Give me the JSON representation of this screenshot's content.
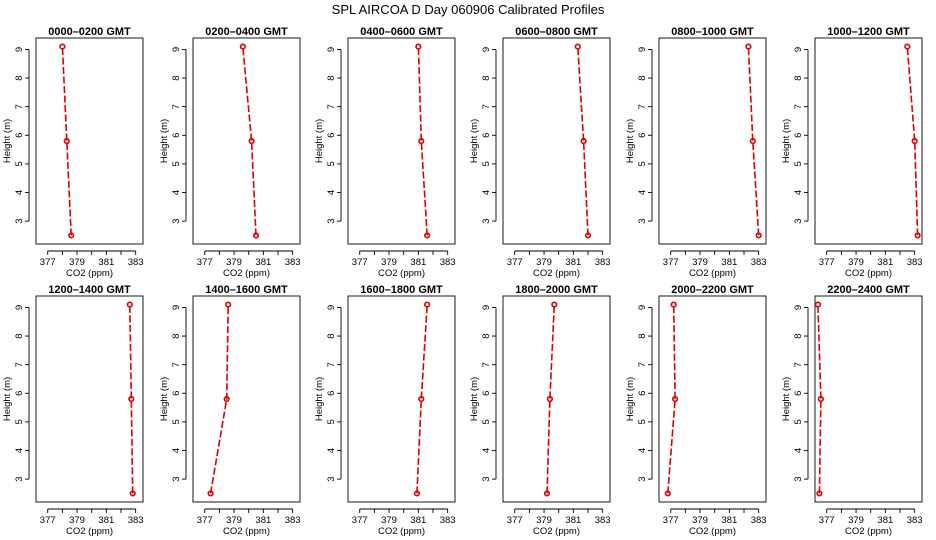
{
  "figure": {
    "title": "SPL AIRCOA D  Day 060906  Calibrated Profiles",
    "line_color": "#dd0000",
    "marker": "open-circle"
  },
  "chart_data": [
    {
      "type": "line",
      "title": "0000–0200 GMT",
      "xlabel": "CO2 (ppm)",
      "ylabel": "Height (m)",
      "xlim": [
        376.2,
        383.5
      ],
      "ylim": [
        2.2,
        9.4
      ],
      "xticks": [
        377,
        379,
        381,
        383
      ],
      "yticks": [
        3,
        4,
        5,
        6,
        7,
        8,
        9
      ],
      "series": [
        {
          "x": [
            378.6,
            378.3,
            378.0
          ],
          "y": [
            2.5,
            5.8,
            9.1
          ]
        }
      ]
    },
    {
      "type": "line",
      "title": "0200–0400 GMT",
      "xlabel": "CO2 (ppm)",
      "ylabel": "Height (m)",
      "xlim": [
        376.2,
        383.5
      ],
      "ylim": [
        2.2,
        9.4
      ],
      "xticks": [
        377,
        379,
        381,
        383
      ],
      "yticks": [
        3,
        4,
        5,
        6,
        7,
        8,
        9
      ],
      "series": [
        {
          "x": [
            380.5,
            380.2,
            379.6
          ],
          "y": [
            2.5,
            5.8,
            9.1
          ]
        }
      ]
    },
    {
      "type": "line",
      "title": "0400–0600 GMT",
      "xlabel": "CO2 (ppm)",
      "ylabel": "Height (m)",
      "xlim": [
        376.2,
        383.5
      ],
      "ylim": [
        2.2,
        9.4
      ],
      "xticks": [
        377,
        379,
        381,
        383
      ],
      "yticks": [
        3,
        4,
        5,
        6,
        7,
        8,
        9
      ],
      "series": [
        {
          "x": [
            381.6,
            381.2,
            381.0
          ],
          "y": [
            2.5,
            5.8,
            9.1
          ]
        }
      ]
    },
    {
      "type": "line",
      "title": "0600–0800 GMT",
      "xlabel": "CO2 (ppm)",
      "ylabel": "Height (m)",
      "xlim": [
        376.2,
        383.5
      ],
      "ylim": [
        2.2,
        9.4
      ],
      "xticks": [
        377,
        379,
        381,
        383
      ],
      "yticks": [
        3,
        4,
        5,
        6,
        7,
        8,
        9
      ],
      "series": [
        {
          "x": [
            382.0,
            381.7,
            381.3
          ],
          "y": [
            2.5,
            5.8,
            9.1
          ]
        }
      ]
    },
    {
      "type": "line",
      "title": "0800–1000 GMT",
      "xlabel": "CO2 (ppm)",
      "ylabel": "Height (m)",
      "xlim": [
        376.2,
        383.5
      ],
      "ylim": [
        2.2,
        9.4
      ],
      "xticks": [
        377,
        379,
        381,
        383
      ],
      "yticks": [
        3,
        4,
        5,
        6,
        7,
        8,
        9
      ],
      "series": [
        {
          "x": [
            383.0,
            382.6,
            382.3
          ],
          "y": [
            2.5,
            5.8,
            9.1
          ]
        }
      ]
    },
    {
      "type": "line",
      "title": "1000–1200 GMT",
      "xlabel": "CO2 (ppm)",
      "ylabel": "Height (m)",
      "xlim": [
        376.2,
        383.5
      ],
      "ylim": [
        2.2,
        9.4
      ],
      "xticks": [
        377,
        379,
        381,
        383
      ],
      "yticks": [
        3,
        4,
        5,
        6,
        7,
        8,
        9
      ],
      "series": [
        {
          "x": [
            383.2,
            383.0,
            382.5
          ],
          "y": [
            2.5,
            5.8,
            9.1
          ]
        }
      ]
    },
    {
      "type": "line",
      "title": "1200–1400 GMT",
      "xlabel": "CO2 (ppm)",
      "ylabel": "Height (m)",
      "xlim": [
        376.2,
        383.5
      ],
      "ylim": [
        2.2,
        9.4
      ],
      "xticks": [
        377,
        379,
        381,
        383
      ],
      "yticks": [
        3,
        4,
        5,
        6,
        7,
        8,
        9
      ],
      "series": [
        {
          "x": [
            382.8,
            382.7,
            382.6
          ],
          "y": [
            2.5,
            5.8,
            9.1
          ]
        }
      ]
    },
    {
      "type": "line",
      "title": "1400–1600 GMT",
      "xlabel": "CO2 (ppm)",
      "ylabel": "Height (m)",
      "xlim": [
        376.2,
        383.5
      ],
      "ylim": [
        2.2,
        9.4
      ],
      "xticks": [
        377,
        379,
        381,
        383
      ],
      "yticks": [
        3,
        4,
        5,
        6,
        7,
        8,
        9
      ],
      "series": [
        {
          "x": [
            377.4,
            378.5,
            378.6
          ],
          "y": [
            2.5,
            5.8,
            9.1
          ]
        }
      ]
    },
    {
      "type": "line",
      "title": "1600–1800 GMT",
      "xlabel": "CO2 (ppm)",
      "ylabel": "Height (m)",
      "xlim": [
        376.2,
        383.5
      ],
      "ylim": [
        2.2,
        9.4
      ],
      "xticks": [
        377,
        379,
        381,
        383
      ],
      "yticks": [
        3,
        4,
        5,
        6,
        7,
        8,
        9
      ],
      "series": [
        {
          "x": [
            380.9,
            381.2,
            381.6
          ],
          "y": [
            2.5,
            5.8,
            9.1
          ]
        }
      ]
    },
    {
      "type": "line",
      "title": "1800–2000 GMT",
      "xlabel": "CO2 (ppm)",
      "ylabel": "Height (m)",
      "xlim": [
        376.2,
        383.5
      ],
      "ylim": [
        2.2,
        9.4
      ],
      "xticks": [
        377,
        379,
        381,
        383
      ],
      "yticks": [
        3,
        4,
        5,
        6,
        7,
        8,
        9
      ],
      "series": [
        {
          "x": [
            379.2,
            379.4,
            379.7
          ],
          "y": [
            2.5,
            5.8,
            9.1
          ]
        }
      ]
    },
    {
      "type": "line",
      "title": "2000–2200 GMT",
      "xlabel": "CO2 (ppm)",
      "ylabel": "Height (m)",
      "xlim": [
        376.2,
        383.5
      ],
      "ylim": [
        2.2,
        9.4
      ],
      "xticks": [
        377,
        379,
        381,
        383
      ],
      "yticks": [
        3,
        4,
        5,
        6,
        7,
        8,
        9
      ],
      "series": [
        {
          "x": [
            376.8,
            377.3,
            377.2
          ],
          "y": [
            2.5,
            5.8,
            9.1
          ]
        }
      ]
    },
    {
      "type": "line",
      "title": "2200–2400 GMT",
      "xlabel": "CO2 (ppm)",
      "ylabel": "Height (m)",
      "xlim": [
        376.2,
        383.5
      ],
      "ylim": [
        2.2,
        9.4
      ],
      "xticks": [
        377,
        379,
        381,
        383
      ],
      "yticks": [
        3,
        4,
        5,
        6,
        7,
        8,
        9
      ],
      "series": [
        {
          "x": [
            376.5,
            376.6,
            376.4
          ],
          "y": [
            2.5,
            5.8,
            9.1
          ]
        }
      ]
    }
  ]
}
